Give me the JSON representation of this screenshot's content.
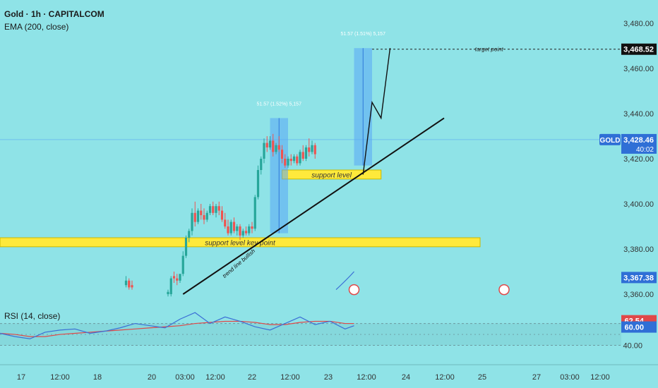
{
  "header": {
    "title": "Gold · 1h · CAPITALCOM",
    "ema_label": "EMA (200, close)",
    "rsi_label": "RSI (14, close)"
  },
  "colors": {
    "background": "#8fe3e7",
    "bull": "#26a69a",
    "bear": "#ef5350",
    "zone": "#ffe93b",
    "projection": "#5aa7f5",
    "trend": "#111111",
    "rsi_line": "#3b6fd6",
    "rsi_ma": "#e04848"
  },
  "chart_data": [
    {
      "type": "candlestick",
      "title": "Gold · 1h · CAPITALCOM",
      "x_tick_labels": [
        "17",
        "12:00",
        "18",
        "20",
        "03:00",
        "12:00",
        "22",
        "12:00",
        "23",
        "12:00",
        "24",
        "12:00",
        "25",
        "27",
        "03:00",
        "12:00"
      ],
      "y_tick_labels": [
        "3,480.00",
        "3,460.00",
        "3,440.00",
        "3,420.00",
        "3,400.00",
        "3,380.00",
        "3,360.00"
      ],
      "y_ticks": [
        3480,
        3460,
        3440,
        3420,
        3400,
        3380,
        3360
      ],
      "ylim": [
        3358,
        3482
      ],
      "xlim": [
        0,
        210
      ],
      "candles": [
        {
          "x": 42,
          "o": 3364,
          "h": 3368,
          "c": 3366,
          "l": 3363
        },
        {
          "x": 43,
          "o": 3366,
          "h": 3367,
          "c": 3363,
          "l": 3362
        },
        {
          "x": 44,
          "o": 3364,
          "h": 3366,
          "c": 3363,
          "l": 3362
        },
        {
          "x": 56,
          "o": 3360,
          "h": 3362,
          "c": 3361,
          "l": 3359
        },
        {
          "x": 57,
          "o": 3360,
          "h": 3368,
          "c": 3367,
          "l": 3359
        },
        {
          "x": 58,
          "o": 3368,
          "h": 3370,
          "c": 3367,
          "l": 3365
        },
        {
          "x": 59,
          "o": 3367,
          "h": 3369,
          "c": 3366,
          "l": 3364
        },
        {
          "x": 60,
          "o": 3366,
          "h": 3368,
          "c": 3369,
          "l": 3365
        },
        {
          "x": 61,
          "o": 3369,
          "h": 3379,
          "c": 3377,
          "l": 3368
        },
        {
          "x": 62,
          "o": 3377,
          "h": 3386,
          "c": 3385,
          "l": 3376
        },
        {
          "x": 63,
          "o": 3385,
          "h": 3389,
          "c": 3388,
          "l": 3383
        },
        {
          "x": 64,
          "o": 3388,
          "h": 3398,
          "c": 3396,
          "l": 3386
        },
        {
          "x": 65,
          "o": 3396,
          "h": 3401,
          "c": 3392,
          "l": 3390
        },
        {
          "x": 66,
          "o": 3392,
          "h": 3398,
          "c": 3397,
          "l": 3391
        },
        {
          "x": 67,
          "o": 3397,
          "h": 3400,
          "c": 3395,
          "l": 3393
        },
        {
          "x": 68,
          "o": 3395,
          "h": 3398,
          "c": 3393,
          "l": 3391
        },
        {
          "x": 69,
          "o": 3393,
          "h": 3397,
          "c": 3396,
          "l": 3392
        },
        {
          "x": 70,
          "o": 3396,
          "h": 3400,
          "c": 3399,
          "l": 3395
        },
        {
          "x": 71,
          "o": 3399,
          "h": 3401,
          "c": 3396,
          "l": 3395
        },
        {
          "x": 72,
          "o": 3396,
          "h": 3400,
          "c": 3399,
          "l": 3394
        },
        {
          "x": 73,
          "o": 3399,
          "h": 3401,
          "c": 3397,
          "l": 3395
        },
        {
          "x": 74,
          "o": 3397,
          "h": 3399,
          "c": 3393,
          "l": 3392
        },
        {
          "x": 75,
          "o": 3393,
          "h": 3396,
          "c": 3390,
          "l": 3389
        },
        {
          "x": 76,
          "o": 3390,
          "h": 3393,
          "c": 3387,
          "l": 3386
        },
        {
          "x": 77,
          "o": 3387,
          "h": 3393,
          "c": 3392,
          "l": 3386
        },
        {
          "x": 78,
          "o": 3392,
          "h": 3394,
          "c": 3388,
          "l": 3387
        },
        {
          "x": 79,
          "o": 3388,
          "h": 3391,
          "c": 3390,
          "l": 3386
        },
        {
          "x": 80,
          "o": 3390,
          "h": 3391,
          "c": 3386,
          "l": 3384
        },
        {
          "x": 81,
          "o": 3386,
          "h": 3389,
          "c": 3388,
          "l": 3385
        },
        {
          "x": 82,
          "o": 3388,
          "h": 3390,
          "c": 3387,
          "l": 3386
        },
        {
          "x": 83,
          "o": 3387,
          "h": 3391,
          "c": 3390,
          "l": 3386
        },
        {
          "x": 84,
          "o": 3390,
          "h": 3392,
          "c": 3389,
          "l": 3387
        },
        {
          "x": 85,
          "o": 3389,
          "h": 3404,
          "c": 3403,
          "l": 3388
        },
        {
          "x": 86,
          "o": 3403,
          "h": 3417,
          "c": 3415,
          "l": 3402
        },
        {
          "x": 87,
          "o": 3415,
          "h": 3421,
          "c": 3420,
          "l": 3413
        },
        {
          "x": 88,
          "o": 3420,
          "h": 3429,
          "c": 3427,
          "l": 3418
        },
        {
          "x": 89,
          "o": 3427,
          "h": 3430,
          "c": 3425,
          "l": 3423
        },
        {
          "x": 90,
          "o": 3425,
          "h": 3430,
          "c": 3428,
          "l": 3424
        },
        {
          "x": 91,
          "o": 3428,
          "h": 3431,
          "c": 3423,
          "l": 3421
        },
        {
          "x": 92,
          "o": 3423,
          "h": 3427,
          "c": 3426,
          "l": 3422
        },
        {
          "x": 93,
          "o": 3426,
          "h": 3430,
          "c": 3424,
          "l": 3423
        },
        {
          "x": 94,
          "o": 3424,
          "h": 3426,
          "c": 3420,
          "l": 3418
        },
        {
          "x": 95,
          "o": 3420,
          "h": 3422,
          "c": 3417,
          "l": 3416
        },
        {
          "x": 96,
          "o": 3417,
          "h": 3421,
          "c": 3420,
          "l": 3416
        },
        {
          "x": 97,
          "o": 3420,
          "h": 3422,
          "c": 3419,
          "l": 3417
        },
        {
          "x": 98,
          "o": 3419,
          "h": 3422,
          "c": 3421,
          "l": 3418
        },
        {
          "x": 99,
          "o": 3421,
          "h": 3422,
          "c": 3418,
          "l": 3417
        },
        {
          "x": 100,
          "o": 3418,
          "h": 3424,
          "c": 3423,
          "l": 3417
        },
        {
          "x": 101,
          "o": 3423,
          "h": 3426,
          "c": 3420,
          "l": 3419
        },
        {
          "x": 102,
          "o": 3420,
          "h": 3426,
          "c": 3425,
          "l": 3419
        },
        {
          "x": 103,
          "o": 3425,
          "h": 3429,
          "c": 3423,
          "l": 3421
        },
        {
          "x": 104,
          "o": 3423,
          "h": 3428,
          "c": 3426,
          "l": 3422
        },
        {
          "x": 105,
          "o": 3426,
          "h": 3427,
          "c": 3422,
          "l": 3420
        }
      ],
      "zones": [
        {
          "label": "support level key point",
          "x_start": 0,
          "x_end": 160,
          "y_low": 3381,
          "y_high": 3385
        },
        {
          "label": "support level",
          "x_start": 94,
          "x_end": 127,
          "y_low": 3411,
          "y_high": 3415
        }
      ],
      "projections": [
        {
          "label": "51.57 (1.52%) 5,157",
          "x_start": 90,
          "x_end": 96,
          "y_low": 3387,
          "y_high": 3438
        },
        {
          "label": "51.57 (1.51%) 5,157",
          "x_start": 118,
          "x_end": 124,
          "y_low": 3417,
          "y_high": 3469
        }
      ],
      "trend_line": {
        "label": "trend line bullish",
        "from": [
          61,
          3360
        ],
        "to": [
          148,
          3438
        ]
      },
      "path_arrow": [
        [
          121,
          3413
        ],
        [
          124,
          3445
        ],
        [
          127,
          3438
        ],
        [
          130,
          3469
        ]
      ],
      "target": {
        "label": "target point",
        "value": 3468.52,
        "value_label": "3,468.52",
        "x_start": 124
      },
      "price_tags": [
        {
          "symbol": "GOLD",
          "price": "3,428.46",
          "countdown": "40:02",
          "value": 3428.46
        },
        {
          "price": "3,367.38",
          "value": 3367.38
        }
      ]
    },
    {
      "type": "line",
      "title": "RSI (14, close)",
      "y_tick_labels": [
        "40.00"
      ],
      "ylim": [
        30,
        72
      ],
      "x": [
        0,
        5,
        10,
        15,
        20,
        25,
        30,
        35,
        40,
        45,
        50,
        55,
        60,
        65,
        70,
        75,
        80,
        85,
        90,
        95,
        100,
        105,
        110,
        115,
        118
      ],
      "series": [
        {
          "values": [
            51,
            48,
            46,
            52,
            54,
            55,
            51,
            53,
            56,
            60,
            58,
            56,
            64,
            70,
            60,
            66,
            62,
            57,
            54,
            60,
            66,
            59,
            62,
            55,
            58
          ]
        },
        {
          "values": [
            51,
            50,
            48,
            48,
            50,
            51,
            52,
            53,
            54,
            55,
            56,
            57,
            58,
            60,
            61,
            62,
            62,
            61,
            59,
            59,
            61,
            62,
            62,
            60,
            60
          ]
        }
      ],
      "value_tags": [
        {
          "label": "62.54",
          "value": 62.54
        },
        {
          "label": "60.00",
          "value": 60
        }
      ]
    }
  ]
}
